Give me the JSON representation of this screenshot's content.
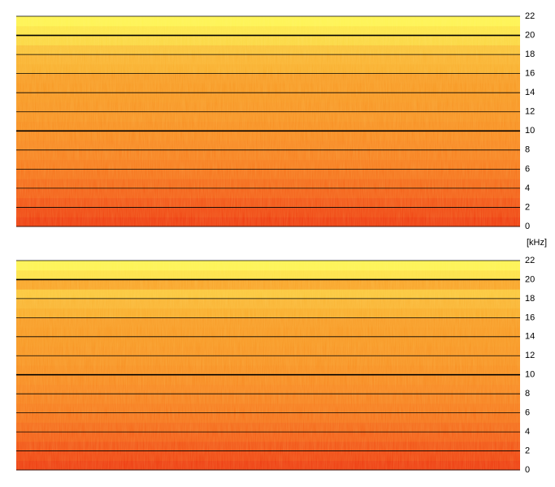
{
  "chart_data": [
    {
      "type": "spectrogram",
      "ylabel": "[kHz]",
      "ylim": [
        0,
        22
      ],
      "yticks": [
        0,
        2,
        4,
        6,
        8,
        10,
        12,
        14,
        16,
        18,
        20,
        22
      ],
      "major_yticks": [
        10,
        20
      ],
      "grid": true,
      "band_colors": [
        "#ee3a10",
        "#f04512",
        "#f25216",
        "#f45e18",
        "#f5681a",
        "#f6721c",
        "#f77a1e",
        "#f78020",
        "#f88622",
        "#f88a22",
        "#f88e22",
        "#f89224",
        "#f89424",
        "#f89624",
        "#f89824",
        "#f89a26",
        "#f9ae2e",
        "#fab232",
        "#fac23a",
        "#fbd844",
        "#fde64a",
        "#fef454"
      ]
    },
    {
      "type": "spectrogram",
      "ylim": [
        0,
        22
      ],
      "yticks": [
        0,
        2,
        4,
        6,
        8,
        10,
        12,
        14,
        16,
        18,
        20,
        22
      ],
      "major_yticks": [
        10,
        20
      ],
      "grid": true,
      "band_colors": [
        "#ee3a10",
        "#f04512",
        "#f25216",
        "#f45e18",
        "#f5681a",
        "#f6721c",
        "#f77a1e",
        "#f78020",
        "#f88622",
        "#f88a22",
        "#f88e22",
        "#f89224",
        "#f89424",
        "#f89624",
        "#f89824",
        "#f89a26",
        "#f9ac2c",
        "#fab434",
        "#fbc63c",
        "#f9a42a",
        "#fde24a",
        "#fef456"
      ]
    }
  ]
}
